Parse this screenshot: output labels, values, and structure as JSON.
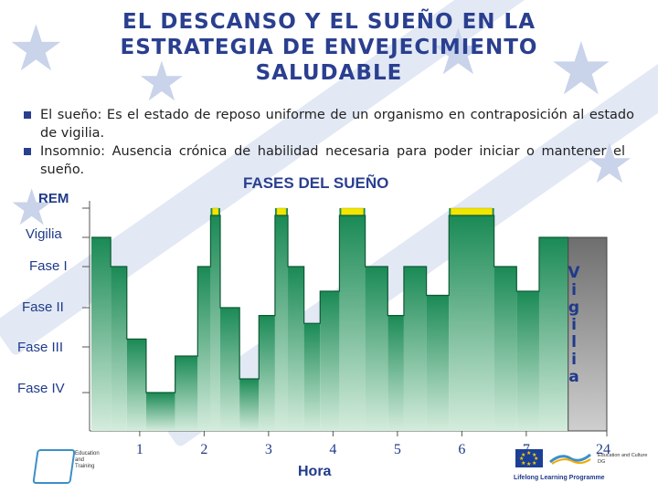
{
  "slide": {
    "title": "EL DESCANSO Y EL SUEÑO EN LA ESTRATEGIA DE ENVEJECIMIENTO SALUDABLE",
    "title_lines": [
      "EL DESCANSO Y EL SUEÑO EN LA",
      "ESTRATEGIA DE ENVEJECIMIENTO",
      "SALUDABLE"
    ],
    "bullets": [
      "El sueño: Es el estado de reposo uniforme de un organismo en contraposición al estado de vigilia.",
      "Insomnio: Ausencia crónica de habilidad necesaria para poder iniciar o mantener el sueño."
    ],
    "accent_color": "#2a3f8f"
  },
  "chart_data": {
    "type": "area",
    "title": "FASES DEL SUEÑO",
    "xlabel": "Hora",
    "ylabel": "",
    "x_tick_labels": [
      "1",
      "2",
      "3",
      "4",
      "5",
      "6",
      "7",
      "24"
    ],
    "y_categories": [
      "Fase IV",
      "Fase III",
      "Fase II",
      "Fase I",
      "Vigilia",
      "REM"
    ],
    "y_levels": {
      "Fase IV": 0,
      "Fase III": 1,
      "Fase II": 2,
      "Fase I": 3,
      "Vigilia": 4,
      "REM": 5
    },
    "annotation_vertical": "Vigilia",
    "fill_color": "#1a8a55",
    "rem_color": "#f2e600",
    "wake_color": "#6e6e6e",
    "segments": [
      {
        "x0": 0.0,
        "x1": 0.3,
        "level": 4
      },
      {
        "x0": 0.3,
        "x1": 0.55,
        "level": 3
      },
      {
        "x0": 0.55,
        "x1": 0.85,
        "level": 1.2
      },
      {
        "x0": 0.85,
        "x1": 1.3,
        "level": 0
      },
      {
        "x0": 1.3,
        "x1": 1.65,
        "level": 0.8
      },
      {
        "x0": 1.65,
        "x1": 1.85,
        "level": 3
      },
      {
        "x0": 1.85,
        "x1": 2.0,
        "level": 5,
        "rem": true
      },
      {
        "x0": 2.0,
        "x1": 2.3,
        "level": 2
      },
      {
        "x0": 2.3,
        "x1": 2.6,
        "level": 0.3
      },
      {
        "x0": 2.6,
        "x1": 2.85,
        "level": 1.8
      },
      {
        "x0": 2.85,
        "x1": 3.05,
        "level": 5,
        "rem": true
      },
      {
        "x0": 3.05,
        "x1": 3.3,
        "level": 3
      },
      {
        "x0": 3.3,
        "x1": 3.55,
        "level": 1.6
      },
      {
        "x0": 3.55,
        "x1": 3.85,
        "level": 2.4
      },
      {
        "x0": 3.85,
        "x1": 4.25,
        "level": 5,
        "rem": true
      },
      {
        "x0": 4.25,
        "x1": 4.6,
        "level": 3
      },
      {
        "x0": 4.6,
        "x1": 4.85,
        "level": 1.8
      },
      {
        "x0": 4.85,
        "x1": 5.2,
        "level": 3
      },
      {
        "x0": 5.2,
        "x1": 5.55,
        "level": 2.3
      },
      {
        "x0": 5.55,
        "x1": 6.25,
        "level": 5,
        "rem": true
      },
      {
        "x0": 6.25,
        "x1": 6.6,
        "level": 3
      },
      {
        "x0": 6.6,
        "x1": 6.95,
        "level": 2.4
      },
      {
        "x0": 6.95,
        "x1": 7.4,
        "level": 4
      }
    ],
    "wake_region": {
      "x0": 7.4,
      "x1": 8.0,
      "level": 4
    }
  },
  "logos": {
    "left_text": [
      "Education",
      "and",
      "Training"
    ],
    "right_text": [
      "Education and Culture DG",
      "Lifelong Learning Programme"
    ]
  }
}
